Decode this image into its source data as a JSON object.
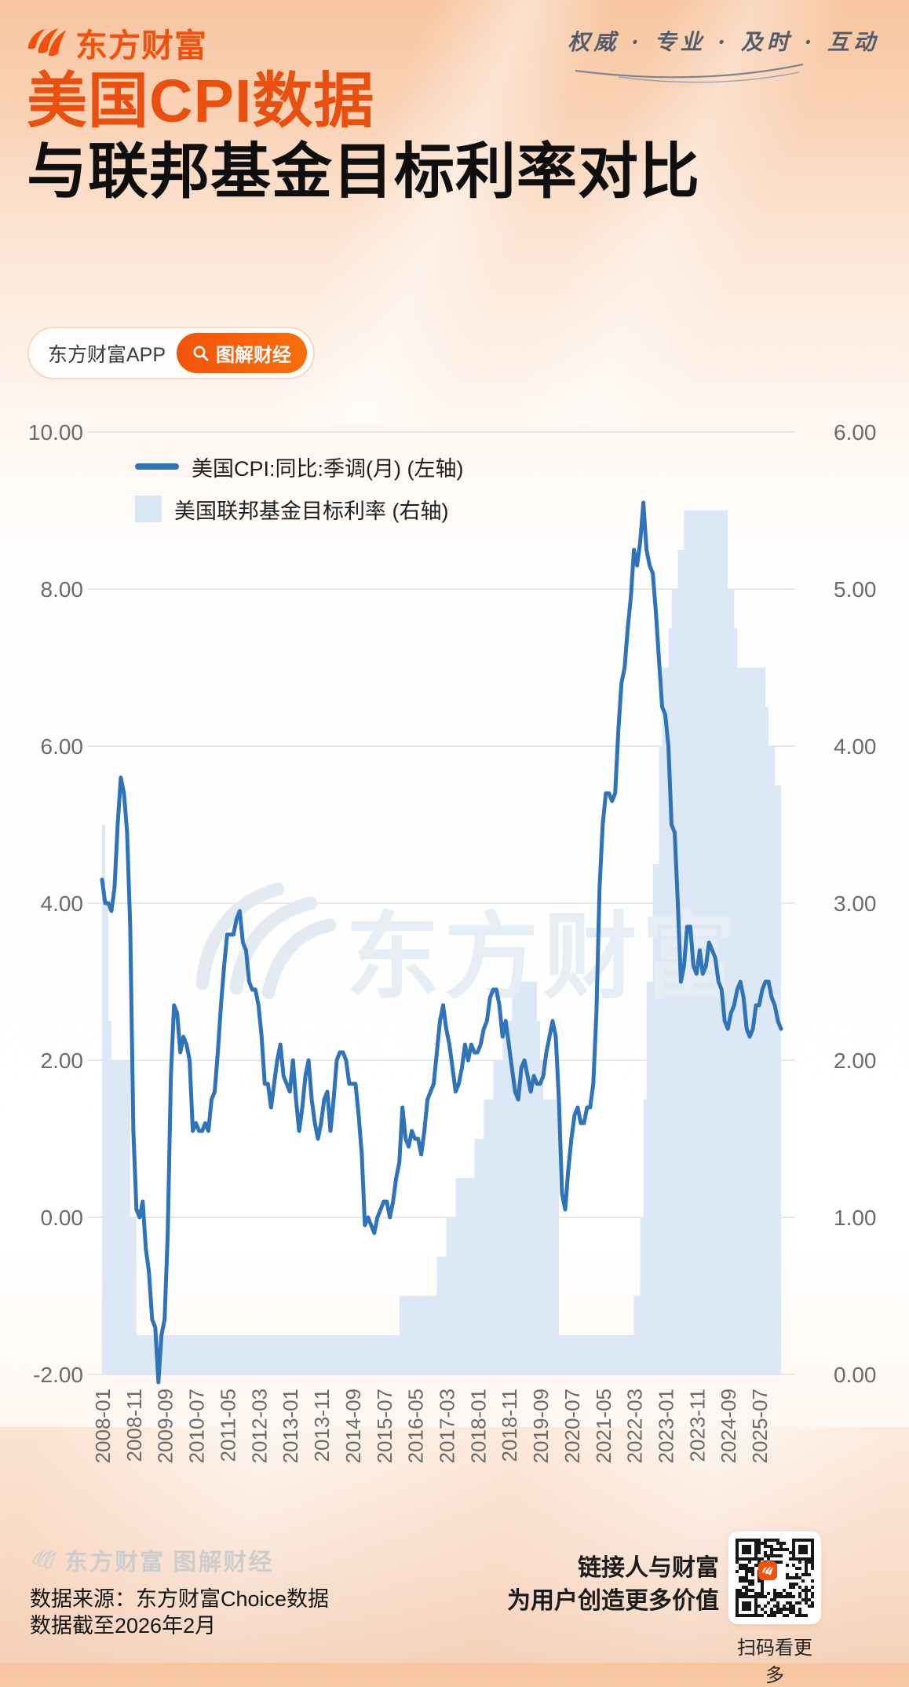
{
  "header": {
    "brand": "东方财富",
    "tagline": "权威 · 专业 · 及时 · 互动"
  },
  "title": {
    "line1": "美国CPI数据",
    "line2": "与联邦基金目标利率对比"
  },
  "badge": {
    "app_label": "东方财富APP",
    "column_label": "图解财经"
  },
  "watermark": {
    "text": "东方财富"
  },
  "footer": {
    "brand_watermark": "东方财富 图解财经",
    "source_line1": "数据来源：东方财富Choice数据",
    "source_line2": "数据截至2026年2月",
    "slogan_line1": "链接人与财富",
    "slogan_line2": "为用户创造更多价值",
    "qr_caption": "扫码看更多"
  },
  "colors": {
    "brand_orange": "#f2500d",
    "line_blue": "#2f73b8",
    "area_blue": "#dce8f5",
    "grid": "#e2e2e2",
    "axis_text": "#6b6b6b",
    "watermark_blue": "#e7edf4"
  },
  "chart_data": {
    "type": "line",
    "title": "美国CPI数据与联邦基金目标利率对比",
    "legend": [
      {
        "label": "美国CPI:同比:季调(月) (左轴)",
        "type": "line",
        "color": "#2f73b8"
      },
      {
        "label": "美国联邦基金目标利率 (右轴)",
        "type": "step-area",
        "color": "#dce8f5"
      }
    ],
    "x_start": "2008-01",
    "x_end": "2026-02",
    "x_tick_interval_months": 10,
    "x_tick_labels": [
      "2008-01",
      "2008-11",
      "2009-09",
      "2010-07",
      "2011-05",
      "2012-03",
      "2013-01",
      "2013-11",
      "2014-09",
      "2015-07",
      "2016-05",
      "2017-03",
      "2018-01",
      "2018-11",
      "2019-09",
      "2020-07",
      "2021-05",
      "2022-03",
      "2023-01",
      "2023-11",
      "2024-09",
      "2025-07"
    ],
    "left_axis": {
      "min": -2,
      "max": 10,
      "ticks": [
        "10.00",
        "8.00",
        "6.00",
        "4.00",
        "2.00",
        "0.00",
        "-2.00"
      ]
    },
    "right_axis": {
      "min": 0,
      "max": 6,
      "ticks": [
        "6.00",
        "5.00",
        "4.00",
        "3.00",
        "2.00",
        "1.00",
        "0.00"
      ]
    },
    "grid": true,
    "series": [
      {
        "name": "美国CPI:同比:季调(月)",
        "axis": "left",
        "type": "line",
        "values": [
          4.3,
          4.0,
          4.0,
          3.9,
          4.2,
          5.0,
          5.6,
          5.4,
          4.9,
          3.7,
          1.1,
          0.1,
          0.0,
          0.2,
          -0.4,
          -0.7,
          -1.3,
          -1.4,
          -2.1,
          -1.5,
          -1.3,
          -0.2,
          1.8,
          2.7,
          2.6,
          2.1,
          2.3,
          2.2,
          2.0,
          1.1,
          1.2,
          1.1,
          1.1,
          1.2,
          1.1,
          1.5,
          1.6,
          2.1,
          2.7,
          3.2,
          3.6,
          3.6,
          3.6,
          3.8,
          3.9,
          3.5,
          3.4,
          3.0,
          2.9,
          2.9,
          2.7,
          2.3,
          1.7,
          1.7,
          1.4,
          1.7,
          2.0,
          2.2,
          1.8,
          1.7,
          1.6,
          2.0,
          1.5,
          1.1,
          1.4,
          1.8,
          2.0,
          1.5,
          1.2,
          1.0,
          1.2,
          1.5,
          1.6,
          1.1,
          1.5,
          2.0,
          2.1,
          2.1,
          2.0,
          1.7,
          1.7,
          1.7,
          1.3,
          0.8,
          -0.1,
          0.0,
          -0.1,
          -0.2,
          0.0,
          0.1,
          0.2,
          0.2,
          0.0,
          0.2,
          0.5,
          0.7,
          1.4,
          1.0,
          0.9,
          1.1,
          1.0,
          1.0,
          0.8,
          1.1,
          1.5,
          1.6,
          1.7,
          2.1,
          2.5,
          2.7,
          2.4,
          2.2,
          1.9,
          1.6,
          1.7,
          1.9,
          2.2,
          2.0,
          2.2,
          2.1,
          2.1,
          2.2,
          2.4,
          2.5,
          2.8,
          2.9,
          2.9,
          2.7,
          2.3,
          2.5,
          2.2,
          1.9,
          1.6,
          1.5,
          1.9,
          2.0,
          1.8,
          1.6,
          1.8,
          1.7,
          1.7,
          1.8,
          2.1,
          2.3,
          2.5,
          2.3,
          1.5,
          0.3,
          0.1,
          0.6,
          1.0,
          1.3,
          1.4,
          1.2,
          1.2,
          1.4,
          1.4,
          1.7,
          2.6,
          4.2,
          5.0,
          5.4,
          5.4,
          5.3,
          5.4,
          6.2,
          6.8,
          7.0,
          7.5,
          7.9,
          8.5,
          8.3,
          8.6,
          9.1,
          8.5,
          8.3,
          8.2,
          7.7,
          7.1,
          6.5,
          6.4,
          6.0,
          5.0,
          4.9,
          4.0,
          3.0,
          3.2,
          3.7,
          3.7,
          3.2,
          3.1,
          3.4,
          3.1,
          3.2,
          3.5,
          3.4,
          3.3,
          3.0,
          2.9,
          2.5,
          2.4,
          2.6,
          2.7,
          2.9,
          3.0,
          2.8,
          2.4,
          2.3,
          2.4,
          2.7,
          2.7,
          2.9,
          3.0,
          3.0,
          2.8,
          2.7,
          2.5,
          2.4
        ]
      },
      {
        "name": "美国联邦基金目标利率",
        "axis": "right",
        "type": "step-area",
        "values": [
          3.5,
          3.0,
          2.25,
          2.0,
          2.0,
          2.0,
          2.0,
          2.0,
          2.0,
          1.0,
          1.0,
          0.25,
          0.25,
          0.25,
          0.25,
          0.25,
          0.25,
          0.25,
          0.25,
          0.25,
          0.25,
          0.25,
          0.25,
          0.25,
          0.25,
          0.25,
          0.25,
          0.25,
          0.25,
          0.25,
          0.25,
          0.25,
          0.25,
          0.25,
          0.25,
          0.25,
          0.25,
          0.25,
          0.25,
          0.25,
          0.25,
          0.25,
          0.25,
          0.25,
          0.25,
          0.25,
          0.25,
          0.25,
          0.25,
          0.25,
          0.25,
          0.25,
          0.25,
          0.25,
          0.25,
          0.25,
          0.25,
          0.25,
          0.25,
          0.25,
          0.25,
          0.25,
          0.25,
          0.25,
          0.25,
          0.25,
          0.25,
          0.25,
          0.25,
          0.25,
          0.25,
          0.25,
          0.25,
          0.25,
          0.25,
          0.25,
          0.25,
          0.25,
          0.25,
          0.25,
          0.25,
          0.25,
          0.25,
          0.25,
          0.25,
          0.25,
          0.25,
          0.25,
          0.25,
          0.25,
          0.25,
          0.25,
          0.25,
          0.25,
          0.25,
          0.5,
          0.5,
          0.5,
          0.5,
          0.5,
          0.5,
          0.5,
          0.5,
          0.5,
          0.5,
          0.5,
          0.5,
          0.75,
          0.75,
          0.75,
          1.0,
          1.0,
          1.0,
          1.25,
          1.25,
          1.25,
          1.25,
          1.25,
          1.25,
          1.5,
          1.5,
          1.5,
          1.75,
          1.75,
          1.75,
          2.0,
          2.0,
          2.0,
          2.25,
          2.25,
          2.25,
          2.5,
          2.5,
          2.5,
          2.5,
          2.5,
          2.5,
          2.5,
          2.5,
          2.25,
          2.0,
          1.75,
          1.75,
          1.75,
          1.75,
          1.75,
          0.25,
          0.25,
          0.25,
          0.25,
          0.25,
          0.25,
          0.25,
          0.25,
          0.25,
          0.25,
          0.25,
          0.25,
          0.25,
          0.25,
          0.25,
          0.25,
          0.25,
          0.25,
          0.25,
          0.25,
          0.25,
          0.25,
          0.25,
          0.25,
          0.5,
          0.5,
          1.0,
          1.75,
          2.5,
          2.5,
          3.25,
          3.25,
          4.0,
          4.5,
          4.5,
          4.75,
          5.0,
          5.0,
          5.25,
          5.25,
          5.5,
          5.5,
          5.5,
          5.5,
          5.5,
          5.5,
          5.5,
          5.5,
          5.5,
          5.5,
          5.5,
          5.5,
          5.5,
          5.5,
          5.0,
          5.0,
          4.75,
          4.5,
          4.5,
          4.5,
          4.5,
          4.5,
          4.5,
          4.5,
          4.5,
          4.5,
          4.25,
          4.0,
          4.0,
          3.75,
          3.75,
          3.75
        ]
      }
    ]
  }
}
